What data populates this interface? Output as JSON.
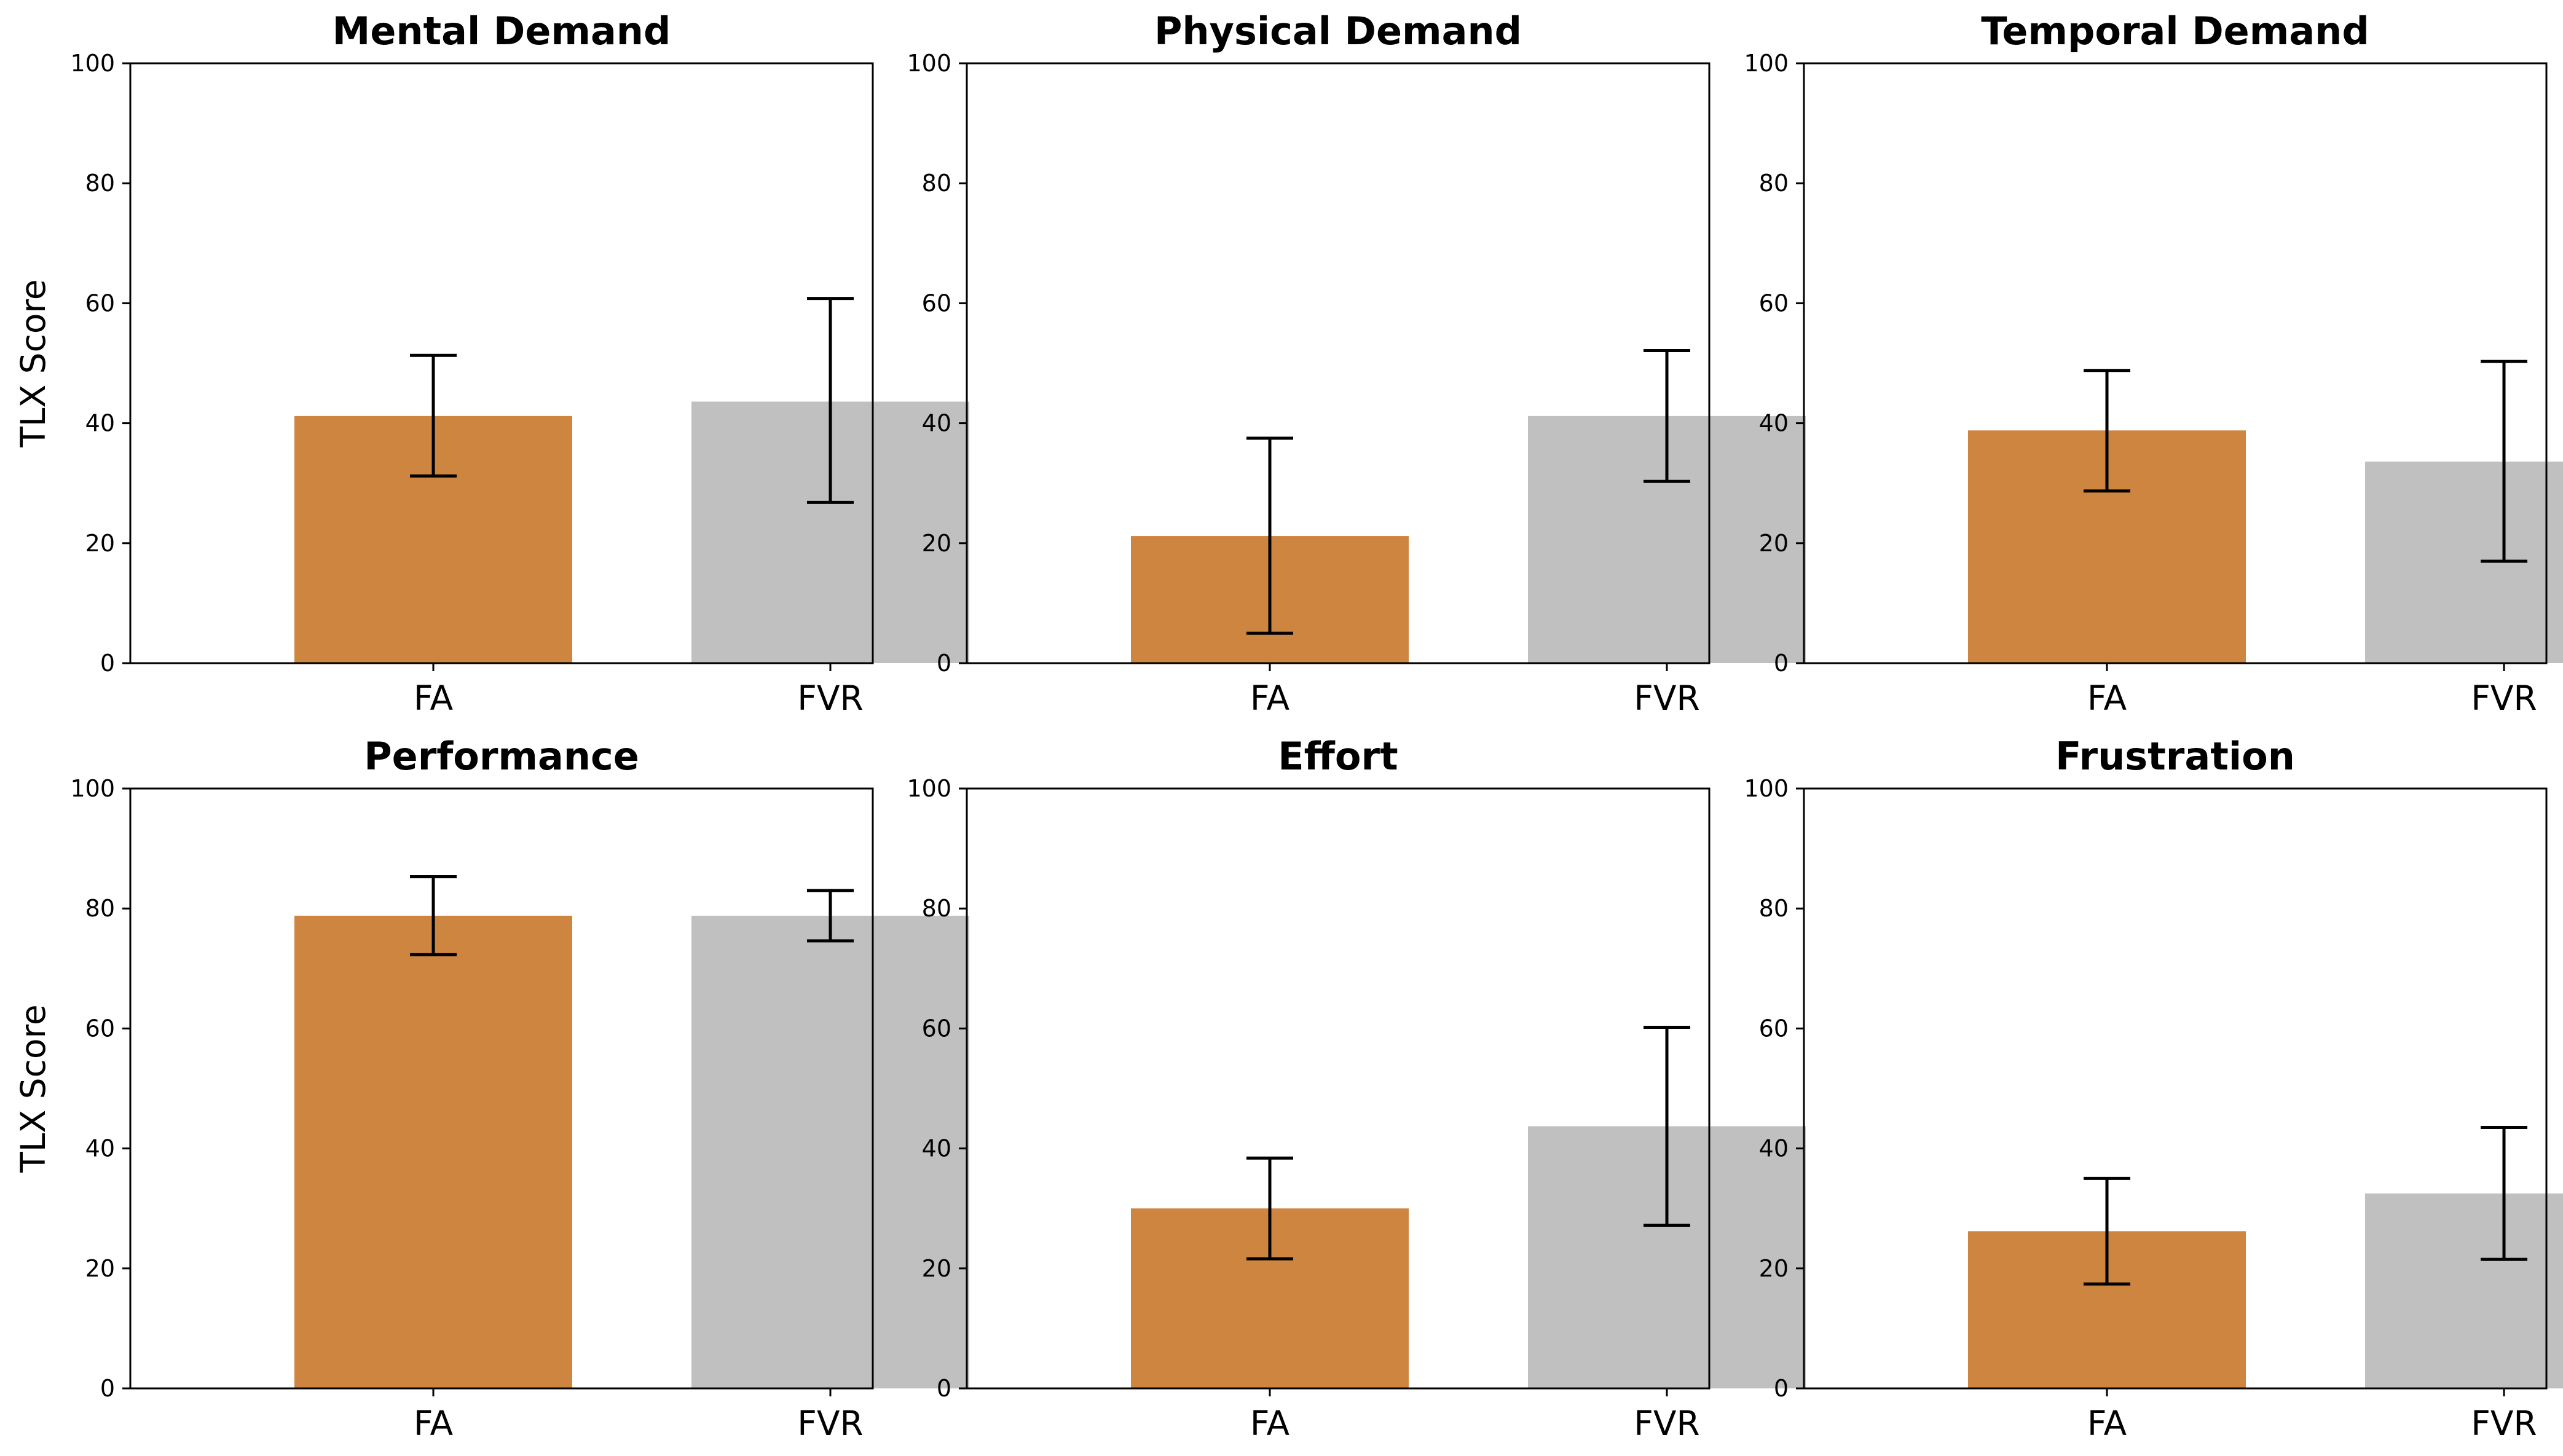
{
  "chart_data": [
    {
      "type": "bar",
      "title": "Mental Demand",
      "categories": [
        "FA",
        "FVR"
      ],
      "values": [
        41.2,
        43.6
      ],
      "error_low": [
        31.2,
        26.8
      ],
      "error_high": [
        51.3,
        60.8
      ],
      "colors": [
        "#cd853f",
        "#c0c0c0"
      ],
      "ylabel": "TLX Score",
      "ylim": [
        0,
        100
      ],
      "yticks": [
        "0",
        "20",
        "40",
        "60",
        "80",
        "100"
      ]
    },
    {
      "type": "bar",
      "title": "Physical Demand",
      "categories": [
        "FA",
        "FVR"
      ],
      "values": [
        21.2,
        41.2
      ],
      "error_low": [
        5.0,
        30.3
      ],
      "error_high": [
        37.5,
        52.1
      ],
      "colors": [
        "#cd853f",
        "#c0c0c0"
      ],
      "ylabel": "",
      "ylim": [
        0,
        100
      ],
      "yticks": [
        "0",
        "20",
        "40",
        "60",
        "80",
        "100"
      ]
    },
    {
      "type": "bar",
      "title": "Temporal Demand",
      "categories": [
        "FA",
        "FVR"
      ],
      "values": [
        38.8,
        33.6
      ],
      "error_low": [
        28.7,
        17.0
      ],
      "error_high": [
        48.8,
        50.3
      ],
      "colors": [
        "#cd853f",
        "#c0c0c0"
      ],
      "ylabel": "",
      "ylim": [
        0,
        100
      ],
      "yticks": [
        "0",
        "20",
        "40",
        "60",
        "80",
        "100"
      ]
    },
    {
      "type": "bar",
      "title": "Performance",
      "categories": [
        "FA",
        "FVR"
      ],
      "values": [
        78.8,
        78.8
      ],
      "error_low": [
        72.3,
        74.6
      ],
      "error_high": [
        85.3,
        83.0
      ],
      "colors": [
        "#cd853f",
        "#c0c0c0"
      ],
      "ylabel": "TLX Score",
      "ylim": [
        0,
        100
      ],
      "yticks": [
        "0",
        "20",
        "40",
        "60",
        "80",
        "100"
      ]
    },
    {
      "type": "bar",
      "title": "Effort",
      "categories": [
        "FA",
        "FVR"
      ],
      "values": [
        30.0,
        43.7
      ],
      "error_low": [
        21.6,
        27.2
      ],
      "error_high": [
        38.4,
        60.2
      ],
      "colors": [
        "#cd853f",
        "#c0c0c0"
      ],
      "ylabel": "",
      "ylim": [
        0,
        100
      ],
      "yticks": [
        "0",
        "20",
        "40",
        "60",
        "80",
        "100"
      ]
    },
    {
      "type": "bar",
      "title": "Frustration",
      "categories": [
        "FA",
        "FVR"
      ],
      "values": [
        26.2,
        32.5
      ],
      "error_low": [
        17.4,
        21.5
      ],
      "error_high": [
        35.0,
        43.5
      ],
      "colors": [
        "#cd853f",
        "#c0c0c0"
      ],
      "ylabel": "",
      "ylim": [
        0,
        100
      ],
      "yticks": [
        "0",
        "20",
        "40",
        "60",
        "80",
        "100"
      ]
    }
  ]
}
